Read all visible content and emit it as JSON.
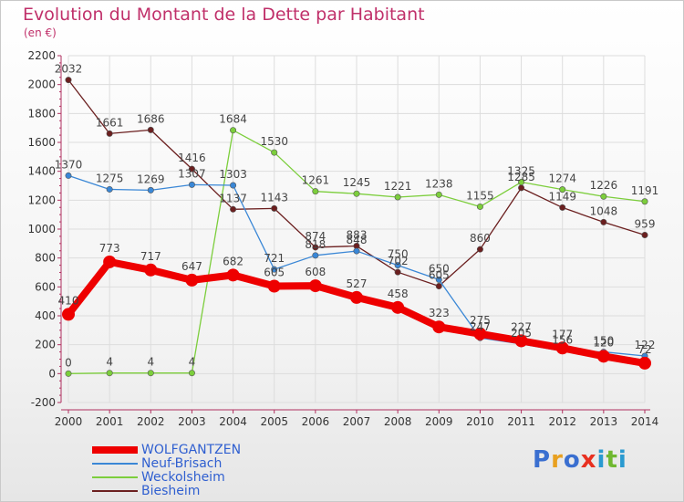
{
  "header": {
    "title": "Evolution du Montant de la Dette par Habitant",
    "subtitle": "(en €)"
  },
  "colors": {
    "title": "#c0306a",
    "axis_text": "#333333",
    "legend_text": "#2f5fd0",
    "grid": "#dddddd",
    "axis": "#b03060"
  },
  "chart_data": {
    "type": "line",
    "x": [
      "2000",
      "2001",
      "2002",
      "2003",
      "2004",
      "2005",
      "2006",
      "2007",
      "2008",
      "2009",
      "2010",
      "2011",
      "2012",
      "2013",
      "2014"
    ],
    "ylim": [
      -200,
      2200
    ],
    "yticks": [
      -200,
      0,
      200,
      400,
      600,
      800,
      1000,
      1200,
      1400,
      1600,
      1800,
      2000,
      2200
    ],
    "grid": true,
    "legend_position": "bottom-left",
    "series": [
      {
        "name": "WOLFGANTZEN",
        "color": "#ee0000",
        "values": [
          410,
          773,
          717,
          647,
          682,
          605,
          608,
          527,
          458,
          323,
          275,
          227,
          177,
          120,
          72
        ]
      },
      {
        "name": "Neuf-Brisach",
        "color": "#3a87d6",
        "values": [
          1370,
          1275,
          1269,
          1307,
          1303,
          721,
          818,
          848,
          750,
          650,
          247,
          205,
          156,
          150,
          122
        ]
      },
      {
        "name": "Weckolsheim",
        "color": "#7cce3c",
        "values": [
          0,
          4,
          4,
          4,
          1684,
          1530,
          1261,
          1245,
          1221,
          1238,
          1155,
          1325,
          1274,
          1226,
          1191
        ]
      },
      {
        "name": "Biesheim",
        "color": "#6b1f1f",
        "values": [
          2032,
          1661,
          1686,
          1416,
          1137,
          1143,
          874,
          883,
          702,
          605,
          860,
          1285,
          1149,
          1048,
          959
        ]
      }
    ]
  },
  "legend": [
    {
      "label": "WOLFGANTZEN"
    },
    {
      "label": "Neuf-Brisach"
    },
    {
      "label": "Weckolsheim"
    },
    {
      "label": "Biesheim"
    }
  ],
  "logo": {
    "letters": [
      "P",
      "r",
      "o",
      "x",
      "i",
      "t",
      "i"
    ],
    "colors": [
      "#3a6fd0",
      "#e8a020",
      "#3a6fd0",
      "#e83020",
      "#2a9ad0",
      "#70b830",
      "#2a9ad0"
    ]
  }
}
